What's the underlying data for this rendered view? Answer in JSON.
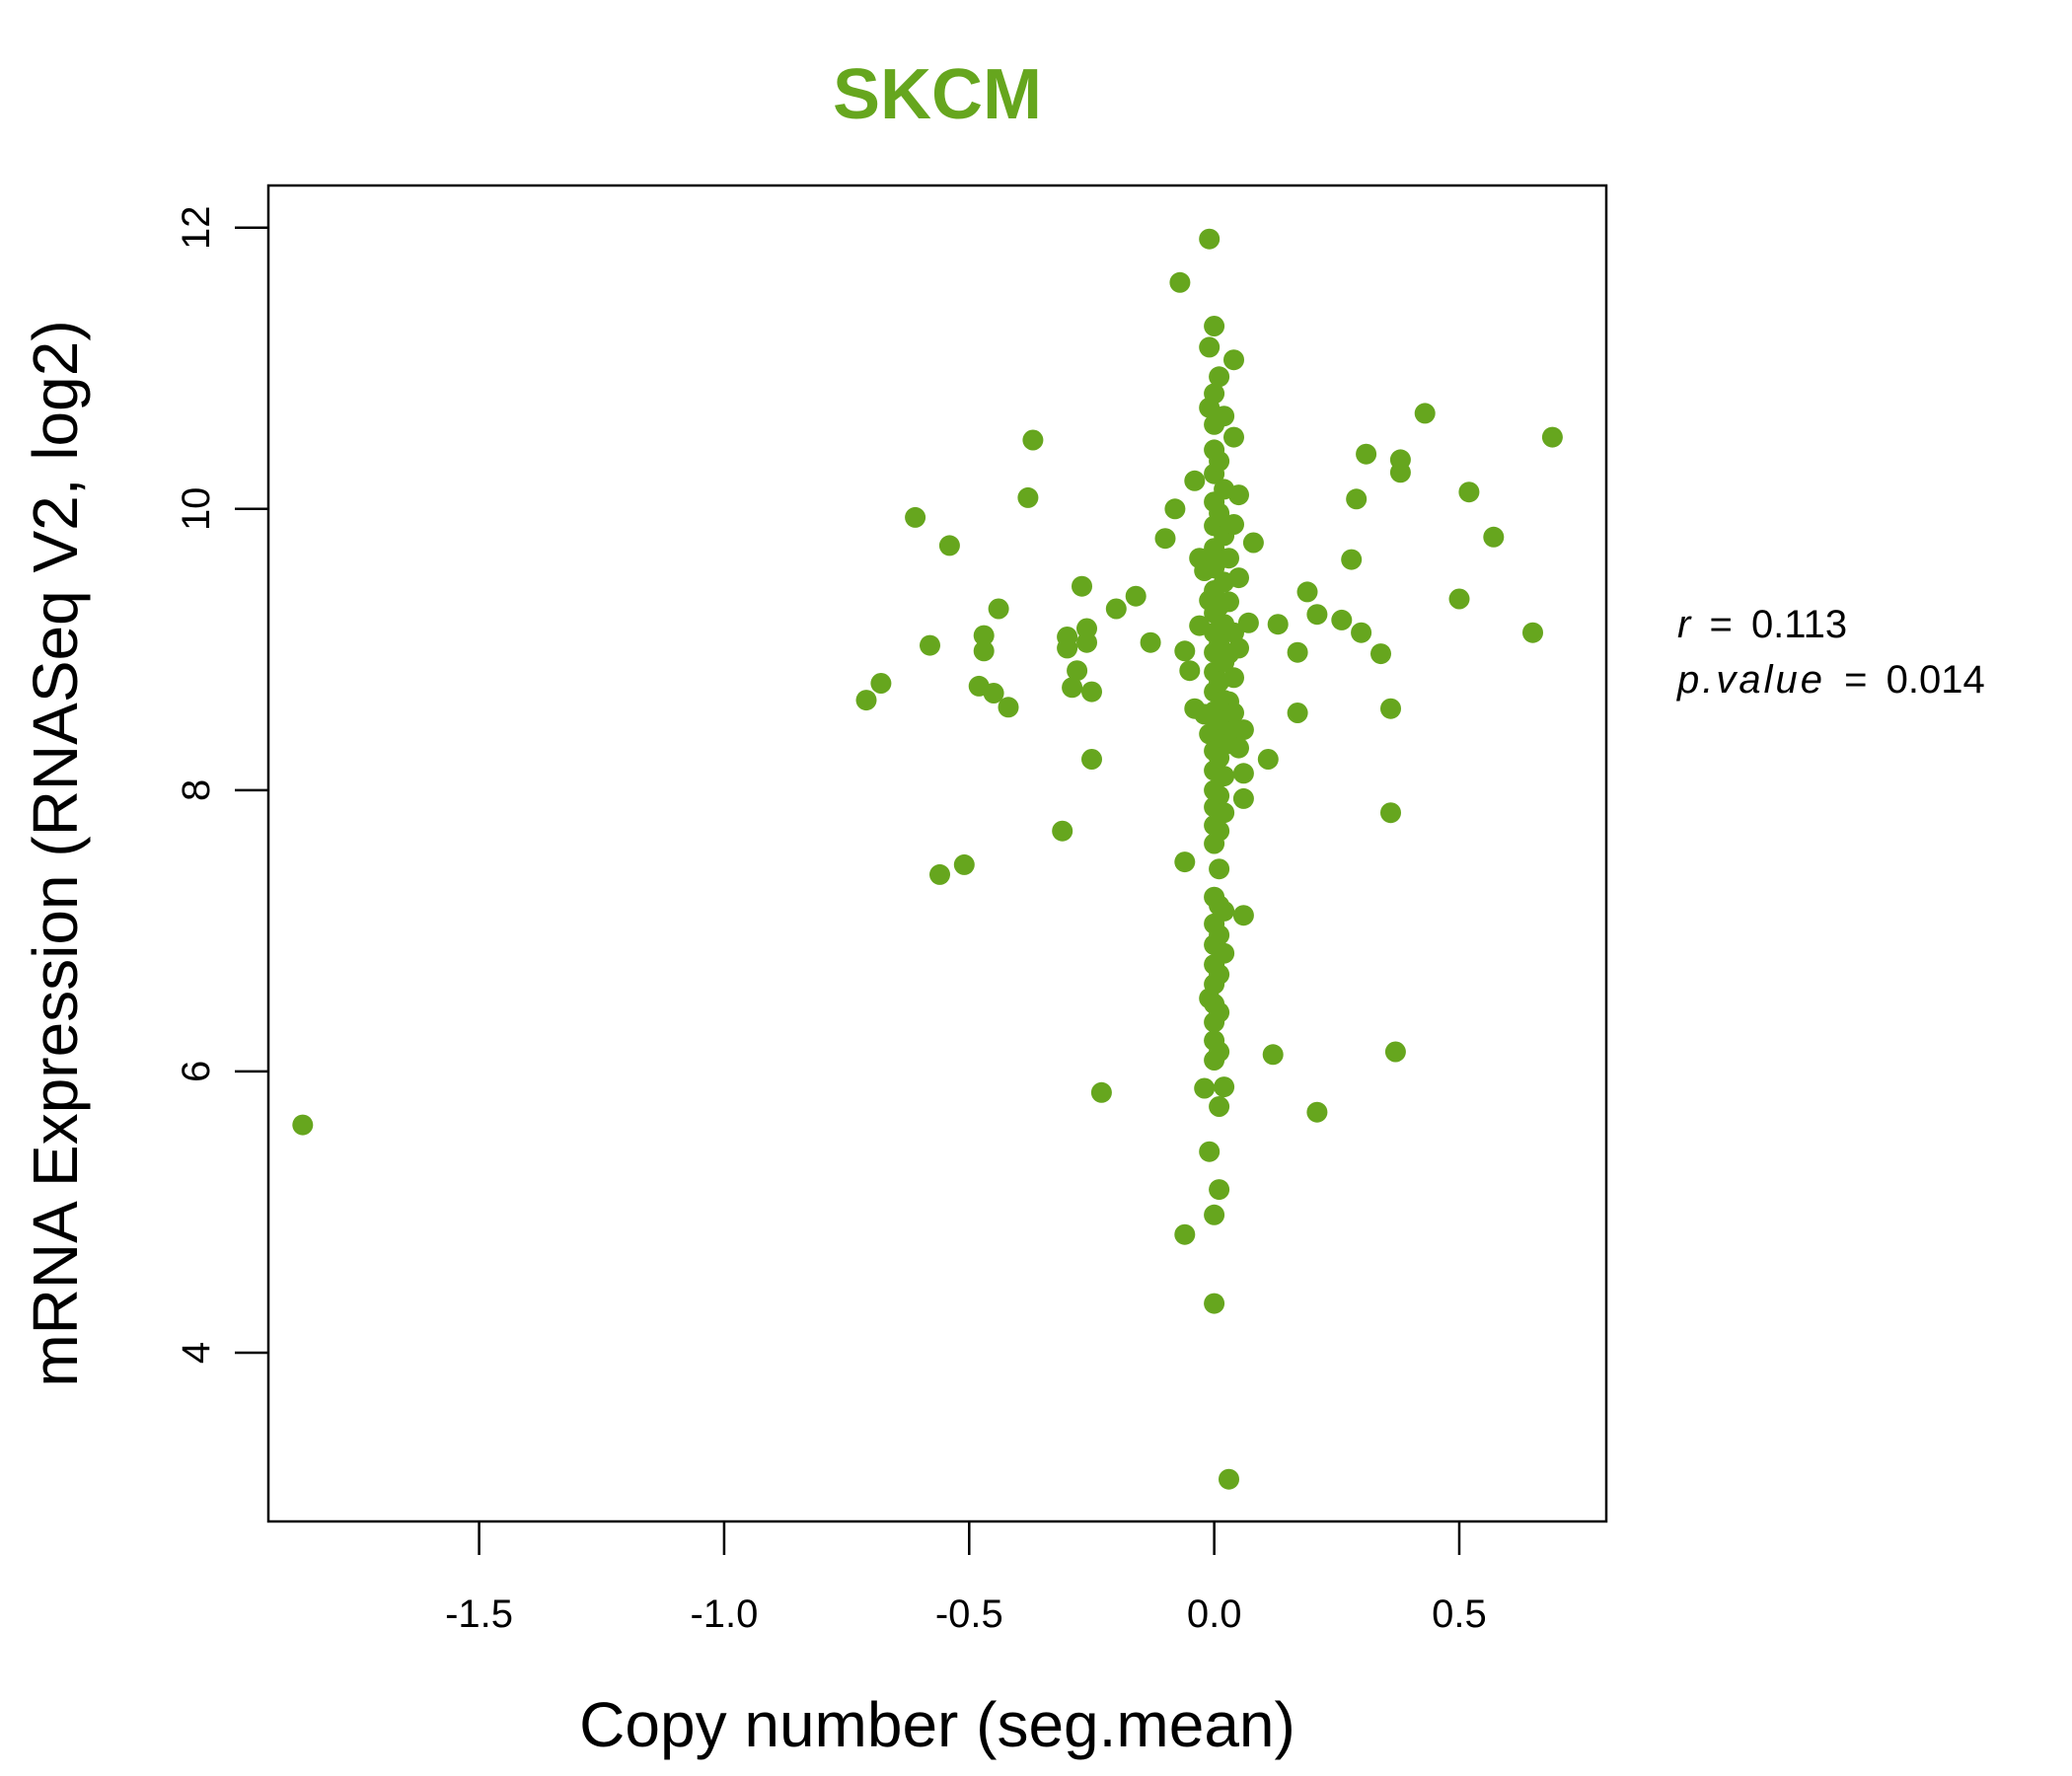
{
  "chart_data": {
    "type": "scatter",
    "title": "SKCM",
    "title_color": "#66a61e",
    "point_color": "#66a61e",
    "xlabel": "Copy number (seg.mean)",
    "ylabel": "mRNA Expression (RNASeq V2, log2)",
    "xlim": [
      -1.93,
      0.8
    ],
    "ylim": [
      2.8,
      12.3
    ],
    "xticks": [
      -1.5,
      -1.0,
      -0.5,
      0.0,
      0.5
    ],
    "xtick_labels": [
      "-1.5",
      "-1.0",
      "-0.5",
      "0.0",
      "0.5"
    ],
    "yticks": [
      4,
      6,
      8,
      10,
      12
    ],
    "ytick_labels": [
      "4",
      "6",
      "8",
      "10",
      "12"
    ],
    "annotation": {
      "r_label": "r",
      "r_value": "0.113",
      "p_label": "p.value",
      "p_value": "0.014",
      "equals": "="
    },
    "points": [
      [
        -1.86,
        5.62
      ],
      [
        -0.71,
        8.64
      ],
      [
        -0.68,
        8.76
      ],
      [
        -0.61,
        9.94
      ],
      [
        -0.58,
        9.03
      ],
      [
        -0.56,
        7.4
      ],
      [
        -0.54,
        9.74
      ],
      [
        -0.51,
        7.47
      ],
      [
        -0.48,
        8.74
      ],
      [
        -0.47,
        9.1
      ],
      [
        -0.47,
        8.99
      ],
      [
        -0.45,
        8.69
      ],
      [
        -0.44,
        9.29
      ],
      [
        -0.42,
        8.59
      ],
      [
        -0.38,
        10.08
      ],
      [
        -0.37,
        10.49
      ],
      [
        -0.31,
        7.71
      ],
      [
        -0.3,
        9.01
      ],
      [
        -0.3,
        9.09
      ],
      [
        -0.29,
        8.73
      ],
      [
        -0.28,
        8.85
      ],
      [
        -0.27,
        9.45
      ],
      [
        -0.26,
        9.05
      ],
      [
        -0.26,
        9.15
      ],
      [
        -0.25,
        8.7
      ],
      [
        -0.25,
        8.22
      ],
      [
        -0.23,
        5.85
      ],
      [
        -0.2,
        9.29
      ],
      [
        -0.16,
        9.38
      ],
      [
        -0.13,
        9.05
      ],
      [
        -0.1,
        9.79
      ],
      [
        -0.08,
        10.0
      ],
      [
        -0.07,
        11.61
      ],
      [
        -0.06,
        8.99
      ],
      [
        -0.06,
        7.49
      ],
      [
        -0.06,
        4.84
      ],
      [
        -0.05,
        8.85
      ],
      [
        -0.04,
        10.2
      ],
      [
        -0.04,
        8.58
      ],
      [
        -0.03,
        9.65
      ],
      [
        -0.03,
        9.17
      ],
      [
        -0.02,
        9.56
      ],
      [
        -0.02,
        8.54
      ],
      [
        -0.02,
        5.88
      ],
      [
        -0.01,
        11.92
      ],
      [
        -0.01,
        11.15
      ],
      [
        -0.01,
        10.72
      ],
      [
        -0.01,
        9.35
      ],
      [
        -0.01,
        8.4
      ],
      [
        -0.01,
        6.52
      ],
      [
        -0.01,
        5.43
      ],
      [
        0.0,
        11.3
      ],
      [
        0.0,
        10.82
      ],
      [
        0.0,
        10.6
      ],
      [
        0.0,
        10.42
      ],
      [
        0.0,
        10.25
      ],
      [
        0.0,
        10.05
      ],
      [
        0.0,
        9.88
      ],
      [
        0.0,
        9.72
      ],
      [
        0.0,
        9.58
      ],
      [
        0.0,
        9.42
      ],
      [
        0.0,
        9.26
      ],
      [
        0.0,
        9.12
      ],
      [
        0.0,
        8.98
      ],
      [
        0.0,
        8.84
      ],
      [
        0.0,
        8.7
      ],
      [
        0.0,
        8.56
      ],
      [
        0.0,
        8.42
      ],
      [
        0.0,
        8.28
      ],
      [
        0.0,
        8.14
      ],
      [
        0.0,
        8.0
      ],
      [
        0.0,
        7.88
      ],
      [
        0.0,
        7.75
      ],
      [
        0.0,
        7.62
      ],
      [
        0.0,
        7.24
      ],
      [
        0.0,
        7.05
      ],
      [
        0.0,
        6.9
      ],
      [
        0.0,
        6.76
      ],
      [
        0.0,
        6.62
      ],
      [
        0.0,
        6.48
      ],
      [
        0.0,
        6.35
      ],
      [
        0.0,
        6.22
      ],
      [
        0.0,
        6.08
      ],
      [
        0.0,
        4.98
      ],
      [
        0.0,
        4.35
      ],
      [
        0.01,
        10.94
      ],
      [
        0.01,
        10.34
      ],
      [
        0.01,
        9.97
      ],
      [
        0.01,
        9.64
      ],
      [
        0.01,
        9.31
      ],
      [
        0.01,
        9.04
      ],
      [
        0.01,
        8.77
      ],
      [
        0.01,
        8.5
      ],
      [
        0.01,
        8.23
      ],
      [
        0.01,
        7.96
      ],
      [
        0.01,
        7.71
      ],
      [
        0.01,
        7.44
      ],
      [
        0.01,
        7.18
      ],
      [
        0.01,
        6.97
      ],
      [
        0.01,
        6.69
      ],
      [
        0.01,
        6.42
      ],
      [
        0.01,
        6.14
      ],
      [
        0.01,
        5.75
      ],
      [
        0.01,
        5.16
      ],
      [
        0.02,
        10.66
      ],
      [
        0.02,
        10.14
      ],
      [
        0.02,
        9.81
      ],
      [
        0.02,
        9.48
      ],
      [
        0.02,
        9.18
      ],
      [
        0.02,
        8.91
      ],
      [
        0.02,
        8.64
      ],
      [
        0.02,
        8.37
      ],
      [
        0.02,
        8.1
      ],
      [
        0.02,
        7.84
      ],
      [
        0.02,
        7.14
      ],
      [
        0.02,
        6.84
      ],
      [
        0.02,
        5.89
      ],
      [
        0.03,
        3.1
      ],
      [
        0.03,
        9.65
      ],
      [
        0.03,
        9.34
      ],
      [
        0.03,
        8.97
      ],
      [
        0.03,
        8.63
      ],
      [
        0.03,
        8.49
      ],
      [
        0.03,
        8.33
      ],
      [
        0.04,
        11.06
      ],
      [
        0.04,
        10.51
      ],
      [
        0.04,
        9.89
      ],
      [
        0.04,
        9.12
      ],
      [
        0.04,
        8.8
      ],
      [
        0.04,
        8.55
      ],
      [
        0.04,
        8.38
      ],
      [
        0.05,
        10.1
      ],
      [
        0.05,
        9.51
      ],
      [
        0.05,
        9.01
      ],
      [
        0.05,
        8.3
      ],
      [
        0.06,
        8.43
      ],
      [
        0.06,
        7.94
      ],
      [
        0.06,
        7.11
      ],
      [
        0.06,
        8.12
      ],
      [
        0.07,
        9.19
      ],
      [
        0.08,
        9.76
      ],
      [
        0.11,
        8.22
      ],
      [
        0.12,
        6.12
      ],
      [
        0.13,
        9.18
      ],
      [
        0.17,
        8.98
      ],
      [
        0.17,
        8.55
      ],
      [
        0.19,
        9.41
      ],
      [
        0.21,
        5.71
      ],
      [
        0.21,
        9.25
      ],
      [
        0.26,
        9.21
      ],
      [
        0.28,
        9.64
      ],
      [
        0.29,
        10.07
      ],
      [
        0.3,
        9.12
      ],
      [
        0.31,
        10.39
      ],
      [
        0.34,
        8.97
      ],
      [
        0.36,
        8.58
      ],
      [
        0.36,
        7.84
      ],
      [
        0.37,
        6.14
      ],
      [
        0.38,
        10.26
      ],
      [
        0.38,
        10.35
      ],
      [
        0.43,
        10.68
      ],
      [
        0.5,
        9.36
      ],
      [
        0.52,
        10.12
      ],
      [
        0.57,
        9.8
      ],
      [
        0.65,
        9.12
      ],
      [
        0.69,
        10.51
      ]
    ]
  }
}
